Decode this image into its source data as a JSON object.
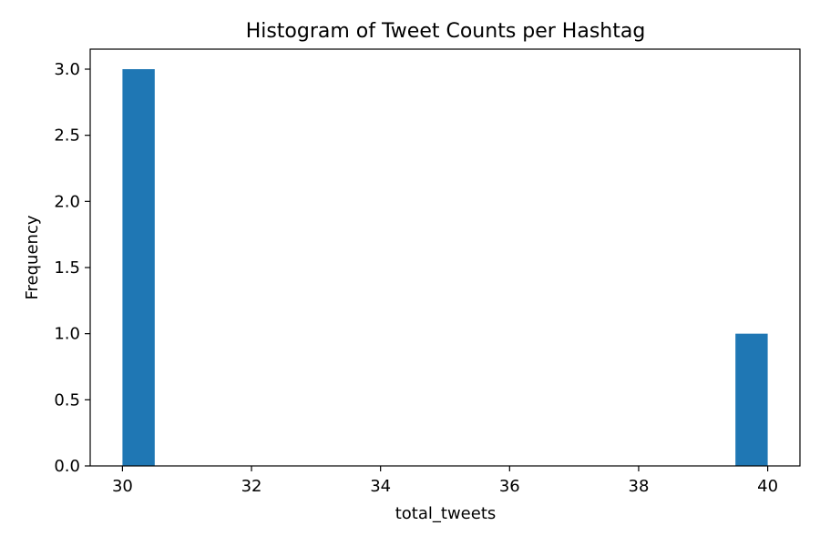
{
  "chart_data": {
    "type": "bar",
    "subtype": "histogram",
    "title": "Histogram of Tweet Counts per Hashtag",
    "xlabel": "total_tweets",
    "ylabel": "Frequency",
    "xlim": [
      29.5,
      40.5
    ],
    "ylim": [
      0,
      3.0
    ],
    "x_ticks": [
      30,
      32,
      34,
      36,
      38,
      40
    ],
    "x_tick_labels": [
      "30",
      "32",
      "34",
      "36",
      "38",
      "40"
    ],
    "y_ticks": [
      0,
      0.5,
      1.0,
      1.5,
      2.0,
      2.5,
      3.0
    ],
    "y_tick_labels": [
      "0.0",
      "0.5",
      "1.0",
      "1.5",
      "2.0",
      "2.5",
      "3.0"
    ],
    "bin_count": 20,
    "bins": [
      {
        "start": 30.0,
        "end": 30.5,
        "value": 3
      },
      {
        "start": 39.5,
        "end": 40.0,
        "value": 1
      }
    ],
    "bar_color": "#1f77b4",
    "grid": false
  }
}
